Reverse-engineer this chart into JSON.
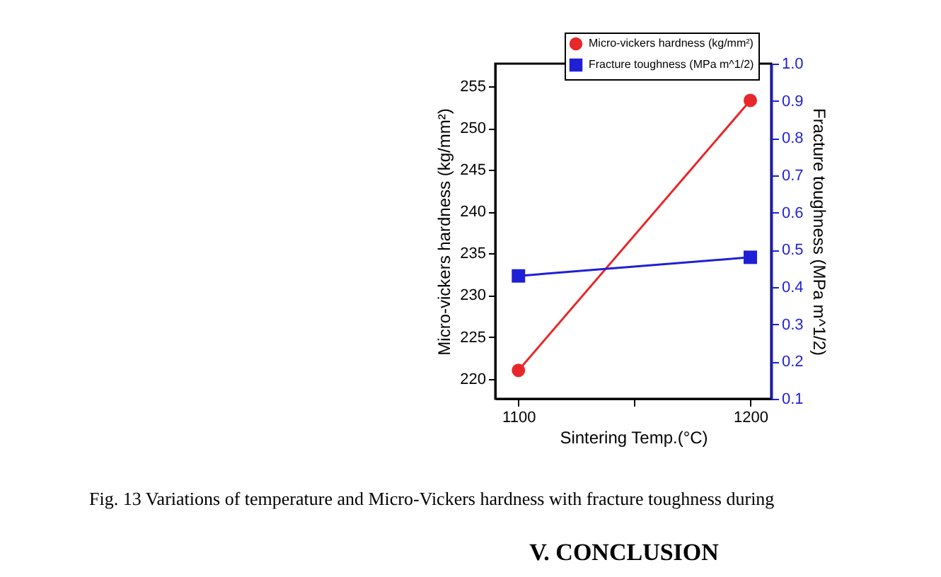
{
  "chart_data": {
    "type": "line",
    "xlabel": "Sintering Temp.(°C)",
    "ylabel": "Micro-vickers hardness (kg/mm²)",
    "y2label": "Fracture toughness (MPa m^1/2)",
    "x": [
      1100,
      1200
    ],
    "series": [
      {
        "name": "Micro-vickers hardness (kg/mm²)",
        "color": "#e8272a",
        "marker": "circle",
        "values": [
          221,
          253.3
        ]
      },
      {
        "name": "Fracture toughness (MPa m^1/2)",
        "color": "#1f1fd6",
        "marker": "square",
        "axis": "y2",
        "values": [
          0.43,
          0.48
        ]
      }
    ],
    "xlim": [
      1090,
      1209
    ],
    "xticks": [
      {
        "value": 1100,
        "label": "1100"
      },
      {
        "value": 1150,
        "label": null
      },
      {
        "value": 1200,
        "label": "1200"
      }
    ],
    "ylim": [
      217.6,
      257.7
    ],
    "yticks": [
      220,
      225,
      230,
      235,
      240,
      245,
      250,
      255
    ],
    "y2lim": [
      0.1,
      1.0
    ],
    "y2ticks": [
      0.1,
      0.2,
      0.3,
      0.4,
      0.5,
      0.6,
      0.7,
      0.8,
      0.9,
      {
        "value": 1.0,
        "label": "1.0"
      }
    ],
    "grid": false,
    "legend": "top right",
    "line_style": "solid",
    "annotations": [
      "Fig. 13 Variations of temperature and Micro-Vickers hardness with fracture toughness during",
      "V.  CONCLUSION"
    ]
  }
}
